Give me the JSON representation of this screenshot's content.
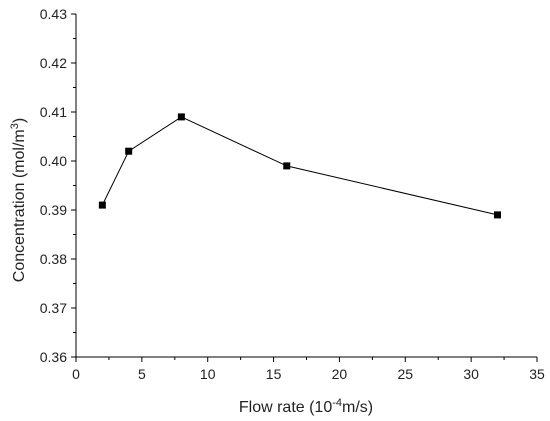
{
  "chart_data": {
    "type": "scatter",
    "x": [
      2,
      4,
      8,
      16,
      32
    ],
    "y": [
      0.391,
      0.402,
      0.409,
      0.399,
      0.389
    ],
    "xlim": [
      0,
      35
    ],
    "ylim": [
      0.36,
      0.43
    ],
    "x_ticks": [
      0,
      5,
      10,
      15,
      20,
      25,
      30,
      35
    ],
    "x_tick_labels": [
      "0",
      "5",
      "10",
      "15",
      "20",
      "25",
      "30",
      "35"
    ],
    "y_ticks": [
      0.36,
      0.37,
      0.38,
      0.39,
      0.4,
      0.41,
      0.42,
      0.43
    ],
    "y_tick_labels": [
      "0.36",
      "0.37",
      "0.38",
      "0.39",
      "0.40",
      "0.41",
      "0.42",
      "0.43"
    ],
    "xlabel": {
      "main": "Flow rate (10",
      "sup": "-4",
      "tail": "m/s)"
    },
    "ylabel": {
      "main": "Concentration (mol/m",
      "sup": "3",
      "tail": ")"
    },
    "marker": "square",
    "line": true,
    "grid": false,
    "color": "#000000"
  }
}
